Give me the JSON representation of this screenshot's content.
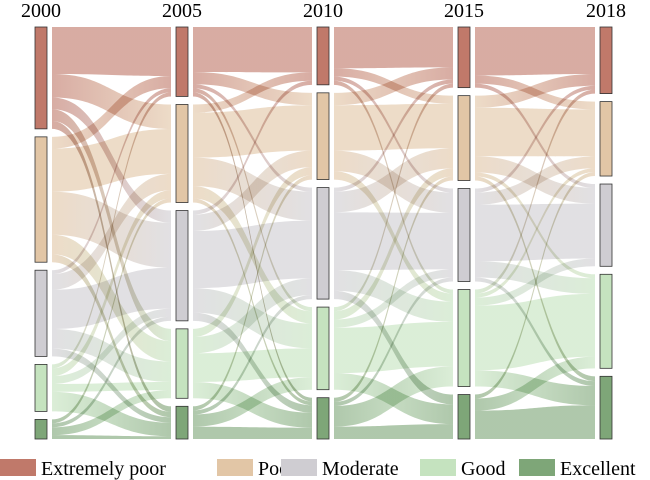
{
  "chart_data": {
    "type": "sankey",
    "years": [
      "2000",
      "2005",
      "2010",
      "2015",
      "2018"
    ],
    "categories": [
      "Extremely poor",
      "Poor",
      "Moderate",
      "Good",
      "Excellent"
    ],
    "colors": {
      "Extremely poor": "#c0796a",
      "Poor": "#e2c6a6",
      "Moderate": "#cfcdd2",
      "Good": "#c5e3bf",
      "Excellent": "#7ea678"
    },
    "node_values": [
      [
        26,
        32,
        22,
        12,
        5
      ],
      [
        17,
        24,
        27,
        17,
        8
      ],
      [
        14,
        21,
        27,
        20,
        10
      ],
      [
        15,
        21,
        23,
        24,
        11
      ],
      [
        17,
        19,
        21,
        24,
        16
      ]
    ],
    "flows": [
      [
        [
          12,
          6,
          3,
          3,
          2
        ],
        [
          3,
          11,
          11,
          5,
          2
        ],
        [
          1,
          4,
          10,
          5,
          2
        ],
        [
          1,
          2,
          2,
          2,
          5
        ],
        [
          0,
          1,
          1,
          2,
          1
        ]
      ],
      [
        [
          11,
          3,
          1,
          1,
          1
        ],
        [
          2,
          11,
          7,
          3,
          1
        ],
        [
          1,
          4,
          14,
          6,
          2
        ],
        [
          0,
          2,
          4,
          7,
          4
        ],
        [
          0,
          1,
          1,
          3,
          3
        ]
      ],
      [
        [
          10,
          2,
          1,
          1,
          0
        ],
        [
          3,
          11,
          5,
          2,
          0
        ],
        [
          1,
          5,
          14,
          5,
          2
        ],
        [
          1,
          2,
          2,
          11,
          4
        ],
        [
          0,
          1,
          1,
          5,
          3
        ]
      ],
      [
        [
          12,
          2,
          1,
          0,
          0
        ],
        [
          3,
          12,
          4,
          1,
          1
        ],
        [
          1,
          3,
          14,
          4,
          1
        ],
        [
          1,
          1,
          2,
          16,
          4
        ],
        [
          0,
          1,
          0,
          3,
          7
        ]
      ]
    ]
  },
  "legend": [
    {
      "label": "Extremely poor",
      "color": "#c0796a"
    },
    {
      "label": "Poor",
      "color": "#e2c6a6"
    },
    {
      "label": "Moderate",
      "color": "#cfcdd2"
    },
    {
      "label": "Good",
      "color": "#c5e3bf"
    },
    {
      "label": "Excellent",
      "color": "#7ea678"
    }
  ]
}
